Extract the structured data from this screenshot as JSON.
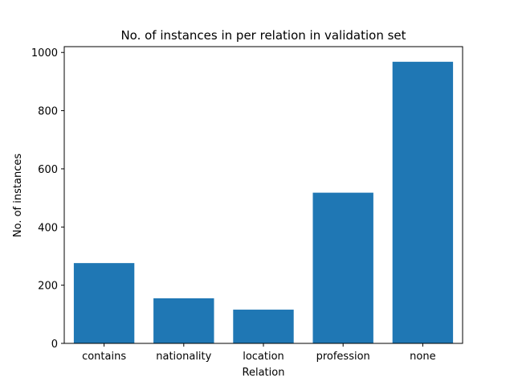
{
  "chart_data": {
    "type": "bar",
    "title": "No. of instances in per relation in validation set",
    "xlabel": "Relation",
    "ylabel": "No. of instances",
    "categories": [
      "contains",
      "nationality",
      "location",
      "profession",
      "none"
    ],
    "values": [
      276,
      155,
      116,
      518,
      968
    ],
    "ylim": [
      0,
      1020
    ],
    "yticks": [
      0,
      200,
      400,
      600,
      800,
      1000
    ],
    "bar_color": "#1f77b4",
    "grid": false,
    "legend": "none"
  }
}
